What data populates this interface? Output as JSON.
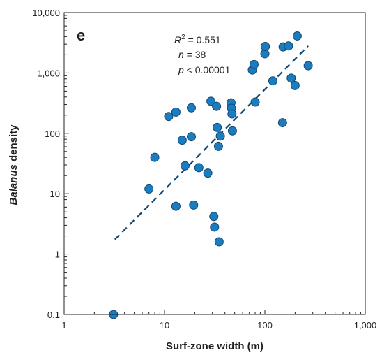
{
  "chart_data": {
    "type": "scatter",
    "panel_label": "e",
    "xlabel": "Surf-zone width (m)",
    "ylabel_italic": "Balanus",
    "ylabel_rest": " density",
    "x_scale": "log",
    "y_scale": "log",
    "xlim": [
      1,
      1000
    ],
    "ylim": [
      0.1,
      10000
    ],
    "x_ticks": [
      1,
      10,
      100,
      1000
    ],
    "x_tick_labels": [
      "1",
      "10",
      "100",
      "1,000"
    ],
    "y_ticks": [
      0.1,
      1,
      10,
      100,
      1000,
      10000
    ],
    "y_tick_labels": [
      "0.1",
      "1",
      "10",
      "100",
      "1,000",
      "10,000"
    ],
    "grid": false,
    "annotations": {
      "r2_symbol": "R",
      "r2_superscript": "2",
      "r2_value": " = 0.551",
      "n_symbol": "n",
      "n_value": " = 38",
      "p_symbol": "p",
      "p_value": " < 0.00001"
    },
    "point_color": "#1a7cc1",
    "point_edge_color": "#14466e",
    "trendline_color": "#14466e",
    "trendline": {
      "x": [
        3.2,
        270
      ],
      "y": [
        1.75,
        2800
      ]
    },
    "points": [
      {
        "x": 3.1,
        "y": 0.1
      },
      {
        "x": 7,
        "y": 12
      },
      {
        "x": 8,
        "y": 40
      },
      {
        "x": 11,
        "y": 190
      },
      {
        "x": 13,
        "y": 225
      },
      {
        "x": 13,
        "y": 6.2
      },
      {
        "x": 15,
        "y": 77
      },
      {
        "x": 16,
        "y": 29
      },
      {
        "x": 18.5,
        "y": 265
      },
      {
        "x": 18.5,
        "y": 88
      },
      {
        "x": 19.5,
        "y": 6.5
      },
      {
        "x": 22,
        "y": 27
      },
      {
        "x": 27,
        "y": 22
      },
      {
        "x": 29,
        "y": 340
      },
      {
        "x": 31,
        "y": 4.2
      },
      {
        "x": 31.5,
        "y": 2.8
      },
      {
        "x": 33,
        "y": 280
      },
      {
        "x": 33.5,
        "y": 125
      },
      {
        "x": 34.5,
        "y": 61
      },
      {
        "x": 35,
        "y": 1.6
      },
      {
        "x": 36,
        "y": 90
      },
      {
        "x": 46,
        "y": 320
      },
      {
        "x": 46.5,
        "y": 260
      },
      {
        "x": 47,
        "y": 210
      },
      {
        "x": 47.5,
        "y": 110
      },
      {
        "x": 75,
        "y": 1120
      },
      {
        "x": 78,
        "y": 1380
      },
      {
        "x": 80,
        "y": 330
      },
      {
        "x": 100,
        "y": 2080
      },
      {
        "x": 101,
        "y": 2750
      },
      {
        "x": 120,
        "y": 740
      },
      {
        "x": 150,
        "y": 150
      },
      {
        "x": 152,
        "y": 2700
      },
      {
        "x": 172,
        "y": 2800
      },
      {
        "x": 183,
        "y": 820
      },
      {
        "x": 200,
        "y": 620
      },
      {
        "x": 210,
        "y": 4100
      },
      {
        "x": 270,
        "y": 1320
      }
    ]
  }
}
